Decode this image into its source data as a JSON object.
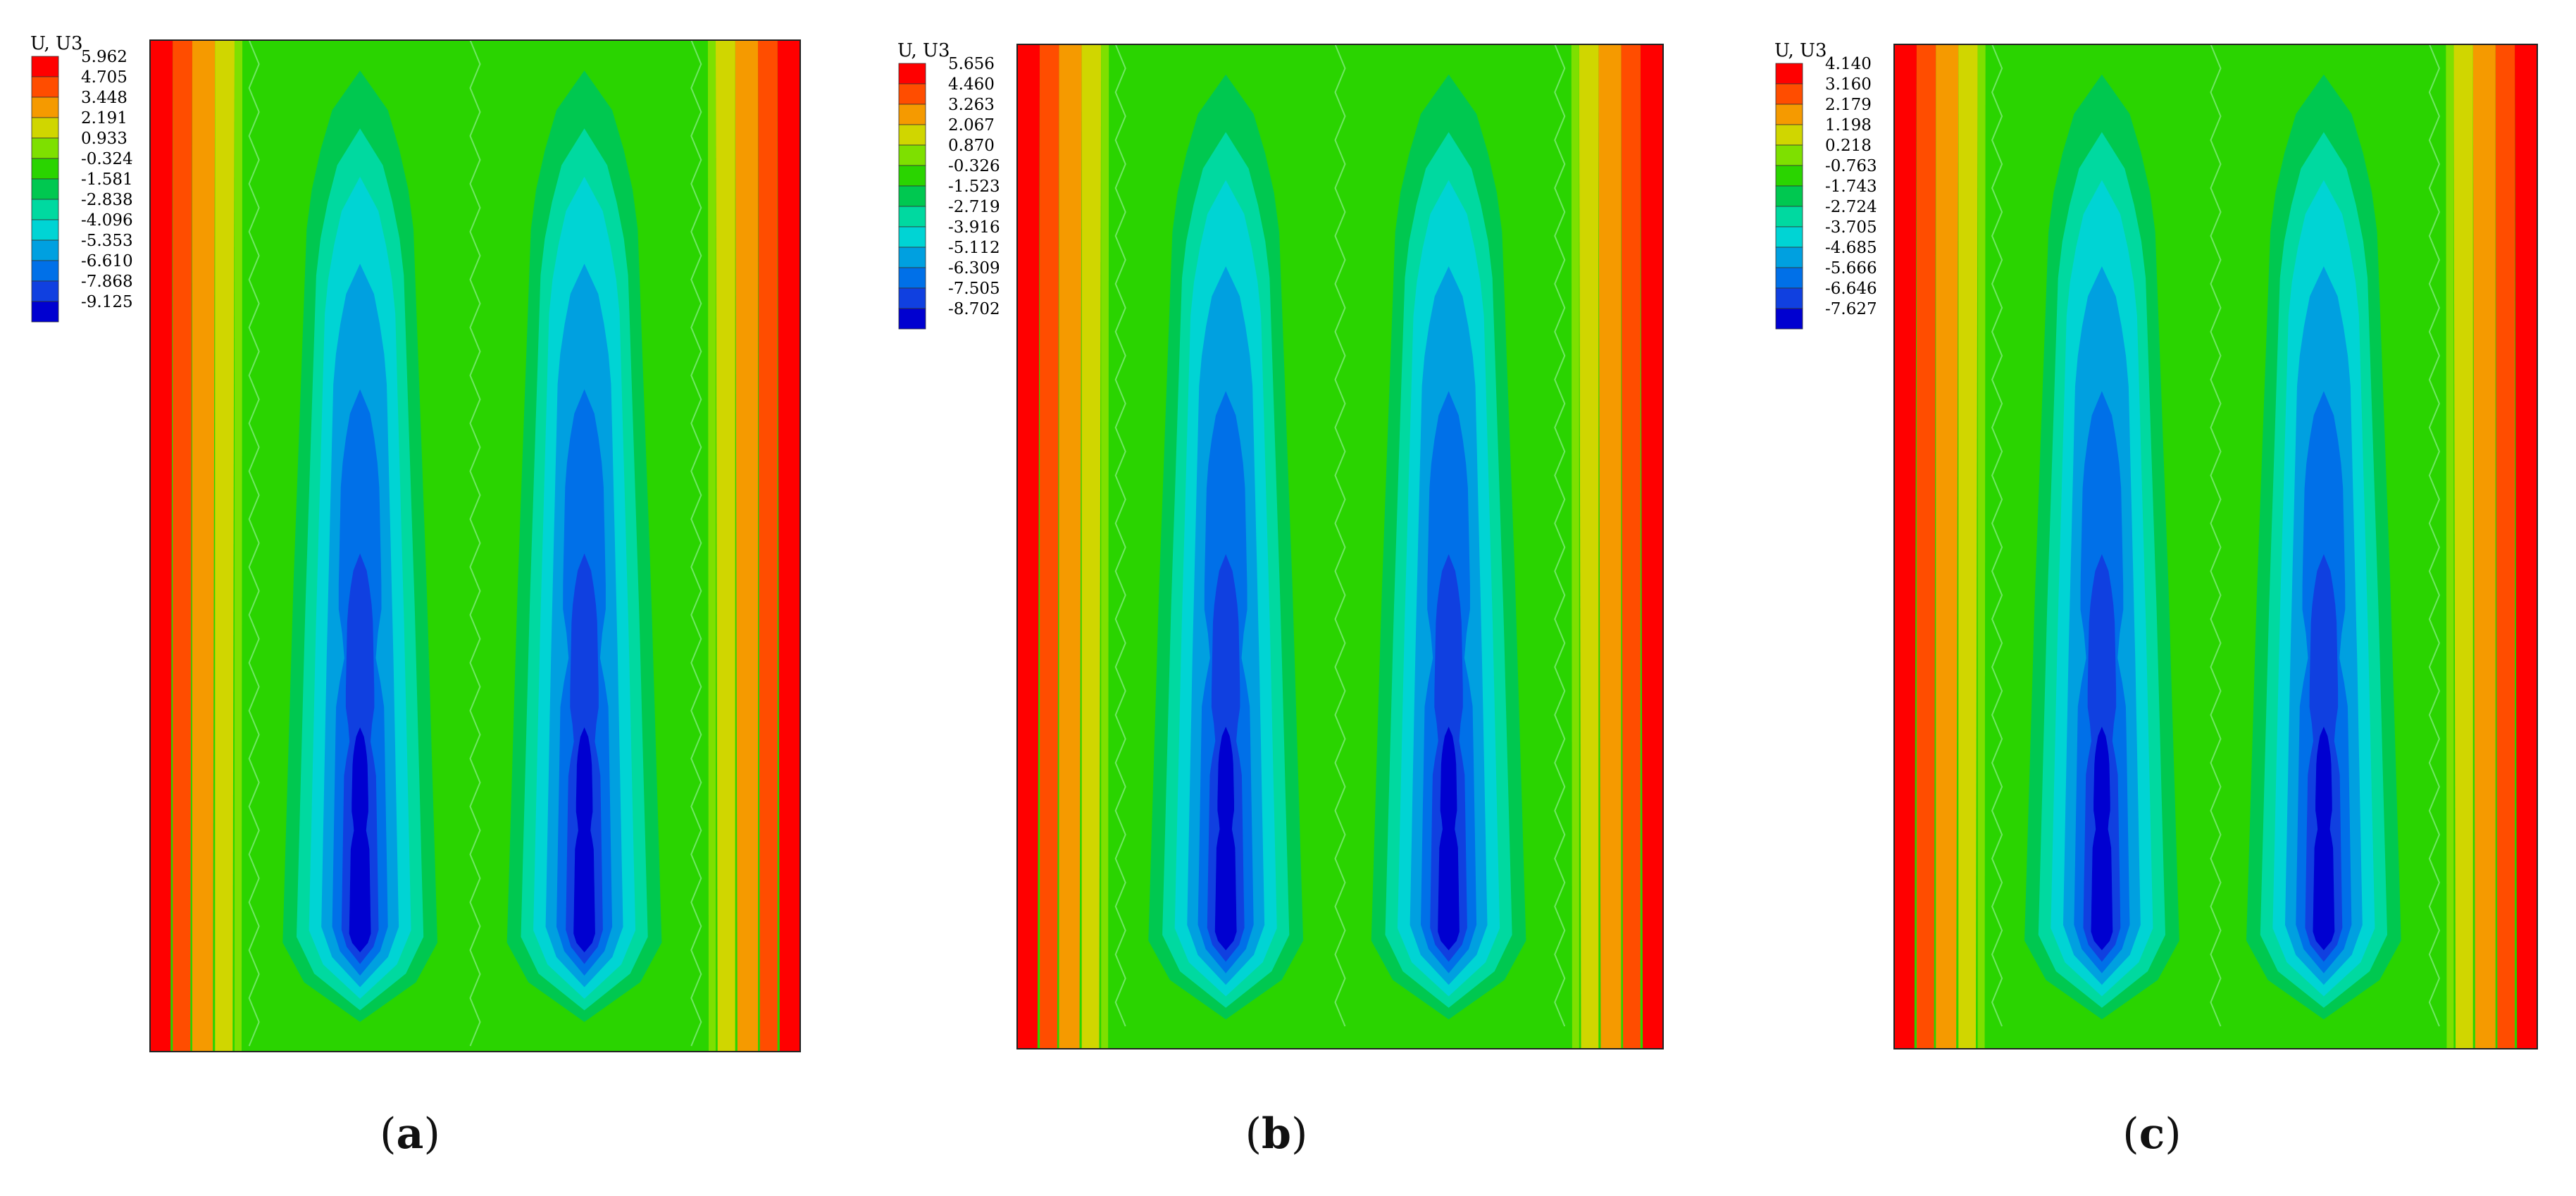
{
  "legend_title": "U, U3",
  "colors": [
    "#ff0000",
    "#ff4d00",
    "#f59a00",
    "#d0d600",
    "#7ee000",
    "#2ad400",
    "#00c850",
    "#00d9a0",
    "#00d4d4",
    "#00a0e0",
    "#0070e8",
    "#1040e0",
    "#0000d0"
  ],
  "panels": [
    {
      "caption_letter": "a",
      "legend_values": [
        "5.962",
        "4.705",
        "3.448",
        "2.191",
        "0.933",
        "-0.324",
        "-1.581",
        "-2.838",
        "-4.096",
        "-5.353",
        "-6.610",
        "-7.868",
        "-9.125"
      ]
    },
    {
      "caption_letter": "b",
      "legend_values": [
        "5.656",
        "4.460",
        "3.263",
        "2.067",
        "0.870",
        "-0.326",
        "-1.523",
        "-2.719",
        "-3.916",
        "-5.112",
        "-6.309",
        "-7.505",
        "-8.702"
      ]
    },
    {
      "caption_letter": "c",
      "legend_values": [
        "4.140",
        "3.160",
        "2.179",
        "1.198",
        "0.218",
        "-0.763",
        "-1.743",
        "-2.724",
        "-3.705",
        "-4.685",
        "-5.666",
        "-6.646",
        "-7.627"
      ]
    }
  ]
}
